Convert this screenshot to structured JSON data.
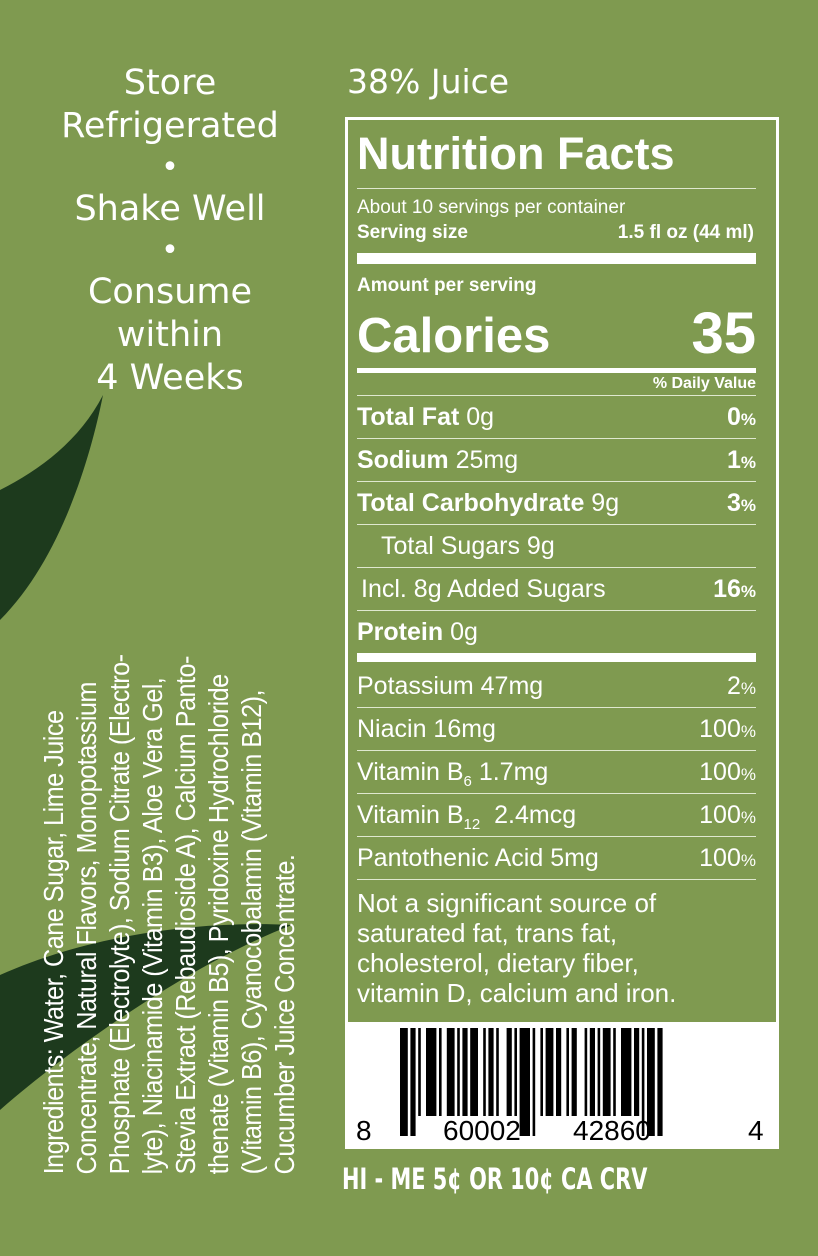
{
  "colors": {
    "background": "#7f9a50",
    "leaf": "#1d3a1d",
    "text": "#ffffff"
  },
  "storage": {
    "line1": "Store",
    "line2": "Refrigerated",
    "bullet": "•",
    "line3": "Shake Well",
    "line4": "Consume",
    "line5": "within",
    "line6": "4 Weeks"
  },
  "juice": "38% Juice",
  "ingredients": [
    "Ingredients: Water, Cane Sugar, Lime Juice",
    "Concentrate, Natural Flavors, Monopotassium",
    "Phosphate (Electrolyte), Sodium Citrate (Electro-",
    "lyte), Niacinamide (Vitamin B3), Aloe Vera Gel,",
    "Stevia Extract (Rebaudioside A), Calcium Panto-",
    "thenate (Vitamin B5), Pyridoxine Hydrochloride",
    "(Vitamin B6), Cyanocobalamin (Vitamin B12),",
    "Cucumber Juice Concentrate."
  ],
  "nutrition": {
    "title": "Nutrition Facts",
    "servings": "About 10 servings per container",
    "serving_size_label": "Serving size",
    "serving_size": "1.5 fl oz (44 ml)",
    "amount_label": "Amount per serving",
    "calories_label": "Calories",
    "calories": "35",
    "dv_label": "% Daily Value",
    "rows": [
      {
        "name": "Total Fat",
        "amount": "0g",
        "pct": "0",
        "bold": true,
        "indent": 0
      },
      {
        "name": "Sodium",
        "amount": "25mg",
        "pct": "1",
        "bold": true,
        "indent": 0
      },
      {
        "name": "Total Carbohydrate",
        "amount": "9g",
        "pct": "3",
        "bold": true,
        "indent": 0
      },
      {
        "name": "Total Sugars 9g",
        "amount": "",
        "pct": "",
        "bold": false,
        "indent": 24
      },
      {
        "name": "Incl. 8g Added Sugars",
        "amount": "",
        "pct": "16",
        "bold": false,
        "indent": 4
      },
      {
        "name": "Protein",
        "amount": "0g",
        "pct": "",
        "bold": true,
        "indent": 0
      }
    ],
    "vitamins": [
      {
        "name": "Potassium 47mg",
        "pct": "2"
      },
      {
        "name": "Niacin 16mg",
        "pct": "100"
      },
      {
        "name": "Vitamin B",
        "sub": "6",
        "amount": " 1.7mg",
        "pct": "100"
      },
      {
        "name": "Vitamin B",
        "sub": "12",
        "amount": "  2.4mcg",
        "pct": "100"
      },
      {
        "name": "Pantothenic Acid 5mg",
        "pct": "100"
      }
    ],
    "pct_sign": "%",
    "footnote": [
      "Not a significant source of",
      "saturated fat, trans fat,",
      "cholesterol, dietary fiber,",
      "vitamin D, calcium and iron."
    ]
  },
  "barcode": {
    "digits": [
      "8",
      "60002",
      "42860",
      "4"
    ]
  },
  "crv": "HI - ME 5¢ OR 10¢ CA CRV"
}
